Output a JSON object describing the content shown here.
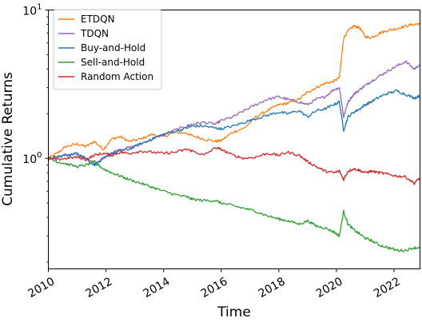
{
  "chart_data": {
    "type": "line",
    "title": "",
    "xlabel": "Time",
    "ylabel": "Cumulative Returns",
    "xlim": [
      2010.0,
      2022.9
    ],
    "ylim": [
      0.18,
      10
    ],
    "yscale": "log",
    "grid": false,
    "legend_position": "top-left",
    "x_ticks": [
      {
        "label": "2010",
        "value": 2010
      },
      {
        "label": "2012",
        "value": 2012
      },
      {
        "label": "2014",
        "value": 2014
      },
      {
        "label": "2016",
        "value": 2016
      },
      {
        "label": "2018",
        "value": 2018
      },
      {
        "label": "2020",
        "value": 2020
      },
      {
        "label": "2022",
        "value": 2022
      }
    ],
    "y_ticks": [
      {
        "value": 1,
        "base": "10",
        "exp": "0"
      },
      {
        "value": 10,
        "base": "10",
        "exp": "1"
      }
    ],
    "series": [
      {
        "name": "ETDQN",
        "color": "#ff7f0e",
        "points": [
          [
            2010.0,
            1.0
          ],
          [
            2010.3,
            1.08
          ],
          [
            2010.6,
            1.2
          ],
          [
            2011.0,
            1.25
          ],
          [
            2011.3,
            1.2
          ],
          [
            2011.6,
            1.3
          ],
          [
            2011.9,
            1.15
          ],
          [
            2012.2,
            1.35
          ],
          [
            2012.5,
            1.4
          ],
          [
            2012.8,
            1.3
          ],
          [
            2013.2,
            1.35
          ],
          [
            2013.6,
            1.45
          ],
          [
            2014.0,
            1.4
          ],
          [
            2014.4,
            1.5
          ],
          [
            2014.8,
            1.48
          ],
          [
            2015.0,
            1.42
          ],
          [
            2015.4,
            1.35
          ],
          [
            2015.8,
            1.3
          ],
          [
            2016.0,
            1.32
          ],
          [
            2016.4,
            1.5
          ],
          [
            2016.8,
            1.6
          ],
          [
            2017.2,
            1.9
          ],
          [
            2017.6,
            2.1
          ],
          [
            2018.0,
            2.3
          ],
          [
            2018.3,
            2.35
          ],
          [
            2018.7,
            2.5
          ],
          [
            2019.0,
            2.8
          ],
          [
            2019.3,
            3.0
          ],
          [
            2019.6,
            3.2
          ],
          [
            2019.9,
            3.3
          ],
          [
            2020.1,
            3.5
          ],
          [
            2020.25,
            6.5
          ],
          [
            2020.4,
            7.2
          ],
          [
            2020.6,
            7.8
          ],
          [
            2020.8,
            7.6
          ],
          [
            2021.0,
            6.6
          ],
          [
            2021.2,
            6.5
          ],
          [
            2021.5,
            7.0
          ],
          [
            2021.8,
            7.3
          ],
          [
            2022.1,
            7.5
          ],
          [
            2022.4,
            7.8
          ],
          [
            2022.7,
            8.0
          ],
          [
            2022.9,
            8.1
          ]
        ]
      },
      {
        "name": "TDQN",
        "color": "#9467bd",
        "points": [
          [
            2010.0,
            1.0
          ],
          [
            2010.3,
            1.02
          ],
          [
            2010.6,
            1.05
          ],
          [
            2011.0,
            1.08
          ],
          [
            2011.3,
            1.0
          ],
          [
            2011.6,
            0.92
          ],
          [
            2011.9,
            1.0
          ],
          [
            2012.2,
            1.1
          ],
          [
            2012.5,
            1.15
          ],
          [
            2012.8,
            1.18
          ],
          [
            2013.2,
            1.25
          ],
          [
            2013.6,
            1.35
          ],
          [
            2014.0,
            1.45
          ],
          [
            2014.4,
            1.55
          ],
          [
            2014.8,
            1.65
          ],
          [
            2015.0,
            1.7
          ],
          [
            2015.4,
            1.75
          ],
          [
            2015.8,
            1.7
          ],
          [
            2016.0,
            1.8
          ],
          [
            2016.4,
            1.9
          ],
          [
            2016.8,
            2.1
          ],
          [
            2017.2,
            2.3
          ],
          [
            2017.6,
            2.5
          ],
          [
            2018.0,
            2.6
          ],
          [
            2018.3,
            2.5
          ],
          [
            2018.7,
            2.4
          ],
          [
            2019.0,
            2.3
          ],
          [
            2019.3,
            2.5
          ],
          [
            2019.6,
            2.6
          ],
          [
            2019.9,
            2.9
          ],
          [
            2020.1,
            3.0
          ],
          [
            2020.25,
            1.9
          ],
          [
            2020.4,
            2.4
          ],
          [
            2020.6,
            2.7
          ],
          [
            2020.8,
            2.9
          ],
          [
            2021.0,
            3.1
          ],
          [
            2021.2,
            3.3
          ],
          [
            2021.5,
            3.6
          ],
          [
            2021.8,
            3.9
          ],
          [
            2022.1,
            4.2
          ],
          [
            2022.4,
            4.5
          ],
          [
            2022.7,
            4.0
          ],
          [
            2022.9,
            4.3
          ]
        ]
      },
      {
        "name": "Buy-and-Hold",
        "color": "#1f77b4",
        "points": [
          [
            2010.0,
            1.0
          ],
          [
            2010.3,
            1.02
          ],
          [
            2010.6,
            1.05
          ],
          [
            2011.0,
            1.08
          ],
          [
            2011.3,
            1.0
          ],
          [
            2011.6,
            0.9
          ],
          [
            2011.9,
            0.98
          ],
          [
            2012.2,
            1.08
          ],
          [
            2012.5,
            1.12
          ],
          [
            2012.8,
            1.15
          ],
          [
            2013.2,
            1.25
          ],
          [
            2013.6,
            1.35
          ],
          [
            2014.0,
            1.45
          ],
          [
            2014.4,
            1.52
          ],
          [
            2014.8,
            1.6
          ],
          [
            2015.0,
            1.65
          ],
          [
            2015.4,
            1.65
          ],
          [
            2015.8,
            1.6
          ],
          [
            2016.0,
            1.58
          ],
          [
            2016.4,
            1.65
          ],
          [
            2016.8,
            1.75
          ],
          [
            2017.2,
            1.85
          ],
          [
            2017.6,
            1.95
          ],
          [
            2018.0,
            2.05
          ],
          [
            2018.3,
            2.0
          ],
          [
            2018.7,
            2.1
          ],
          [
            2019.0,
            1.9
          ],
          [
            2019.3,
            2.1
          ],
          [
            2019.6,
            2.15
          ],
          [
            2019.9,
            2.3
          ],
          [
            2020.1,
            2.4
          ],
          [
            2020.25,
            1.55
          ],
          [
            2020.4,
            1.9
          ],
          [
            2020.6,
            2.05
          ],
          [
            2020.8,
            2.15
          ],
          [
            2021.0,
            2.3
          ],
          [
            2021.2,
            2.4
          ],
          [
            2021.5,
            2.6
          ],
          [
            2021.8,
            2.75
          ],
          [
            2022.1,
            2.85
          ],
          [
            2022.4,
            2.7
          ],
          [
            2022.7,
            2.55
          ],
          [
            2022.9,
            2.65
          ]
        ]
      },
      {
        "name": "Sell-and-Hold",
        "color": "#2ca02c",
        "points": [
          [
            2010.0,
            1.0
          ],
          [
            2010.3,
            0.95
          ],
          [
            2010.6,
            0.92
          ],
          [
            2011.0,
            0.88
          ],
          [
            2011.3,
            0.9
          ],
          [
            2011.6,
            0.95
          ],
          [
            2011.9,
            0.85
          ],
          [
            2012.2,
            0.8
          ],
          [
            2012.5,
            0.76
          ],
          [
            2012.8,
            0.72
          ],
          [
            2013.2,
            0.68
          ],
          [
            2013.6,
            0.64
          ],
          [
            2014.0,
            0.6
          ],
          [
            2014.4,
            0.57
          ],
          [
            2014.8,
            0.55
          ],
          [
            2015.0,
            0.53
          ],
          [
            2015.4,
            0.52
          ],
          [
            2015.8,
            0.52
          ],
          [
            2016.0,
            0.5
          ],
          [
            2016.4,
            0.48
          ],
          [
            2016.8,
            0.46
          ],
          [
            2017.2,
            0.44
          ],
          [
            2017.6,
            0.41
          ],
          [
            2018.0,
            0.39
          ],
          [
            2018.3,
            0.38
          ],
          [
            2018.7,
            0.36
          ],
          [
            2019.0,
            0.38
          ],
          [
            2019.3,
            0.35
          ],
          [
            2019.6,
            0.34
          ],
          [
            2019.9,
            0.32
          ],
          [
            2020.1,
            0.3
          ],
          [
            2020.25,
            0.44
          ],
          [
            2020.4,
            0.36
          ],
          [
            2020.6,
            0.33
          ],
          [
            2020.8,
            0.31
          ],
          [
            2021.0,
            0.29
          ],
          [
            2021.2,
            0.28
          ],
          [
            2021.5,
            0.26
          ],
          [
            2021.8,
            0.25
          ],
          [
            2022.1,
            0.24
          ],
          [
            2022.4,
            0.24
          ],
          [
            2022.7,
            0.25
          ],
          [
            2022.9,
            0.25
          ]
        ]
      },
      {
        "name": "Random Action",
        "color": "#d62728",
        "points": [
          [
            2010.0,
            1.0
          ],
          [
            2010.3,
            0.98
          ],
          [
            2010.6,
            1.0
          ],
          [
            2011.0,
            1.02
          ],
          [
            2011.3,
            0.98
          ],
          [
            2011.6,
            1.05
          ],
          [
            2011.9,
            1.08
          ],
          [
            2012.2,
            1.05
          ],
          [
            2012.5,
            1.1
          ],
          [
            2012.8,
            1.08
          ],
          [
            2013.2,
            1.12
          ],
          [
            2013.6,
            1.1
          ],
          [
            2014.0,
            1.08
          ],
          [
            2014.4,
            1.1
          ],
          [
            2014.8,
            1.15
          ],
          [
            2015.0,
            1.12
          ],
          [
            2015.4,
            1.05
          ],
          [
            2015.8,
            1.18
          ],
          [
            2016.0,
            1.15
          ],
          [
            2016.4,
            1.05
          ],
          [
            2016.8,
            1.0
          ],
          [
            2017.2,
            1.02
          ],
          [
            2017.6,
            1.08
          ],
          [
            2018.0,
            1.05
          ],
          [
            2018.3,
            1.1
          ],
          [
            2018.7,
            1.05
          ],
          [
            2019.0,
            0.95
          ],
          [
            2019.3,
            0.88
          ],
          [
            2019.6,
            0.82
          ],
          [
            2019.9,
            0.8
          ],
          [
            2020.1,
            0.82
          ],
          [
            2020.25,
            0.72
          ],
          [
            2020.4,
            0.82
          ],
          [
            2020.6,
            0.85
          ],
          [
            2020.8,
            0.83
          ],
          [
            2021.0,
            0.8
          ],
          [
            2021.2,
            0.82
          ],
          [
            2021.5,
            0.8
          ],
          [
            2021.8,
            0.78
          ],
          [
            2022.1,
            0.76
          ],
          [
            2022.4,
            0.75
          ],
          [
            2022.7,
            0.68
          ],
          [
            2022.9,
            0.74
          ]
        ]
      }
    ]
  }
}
